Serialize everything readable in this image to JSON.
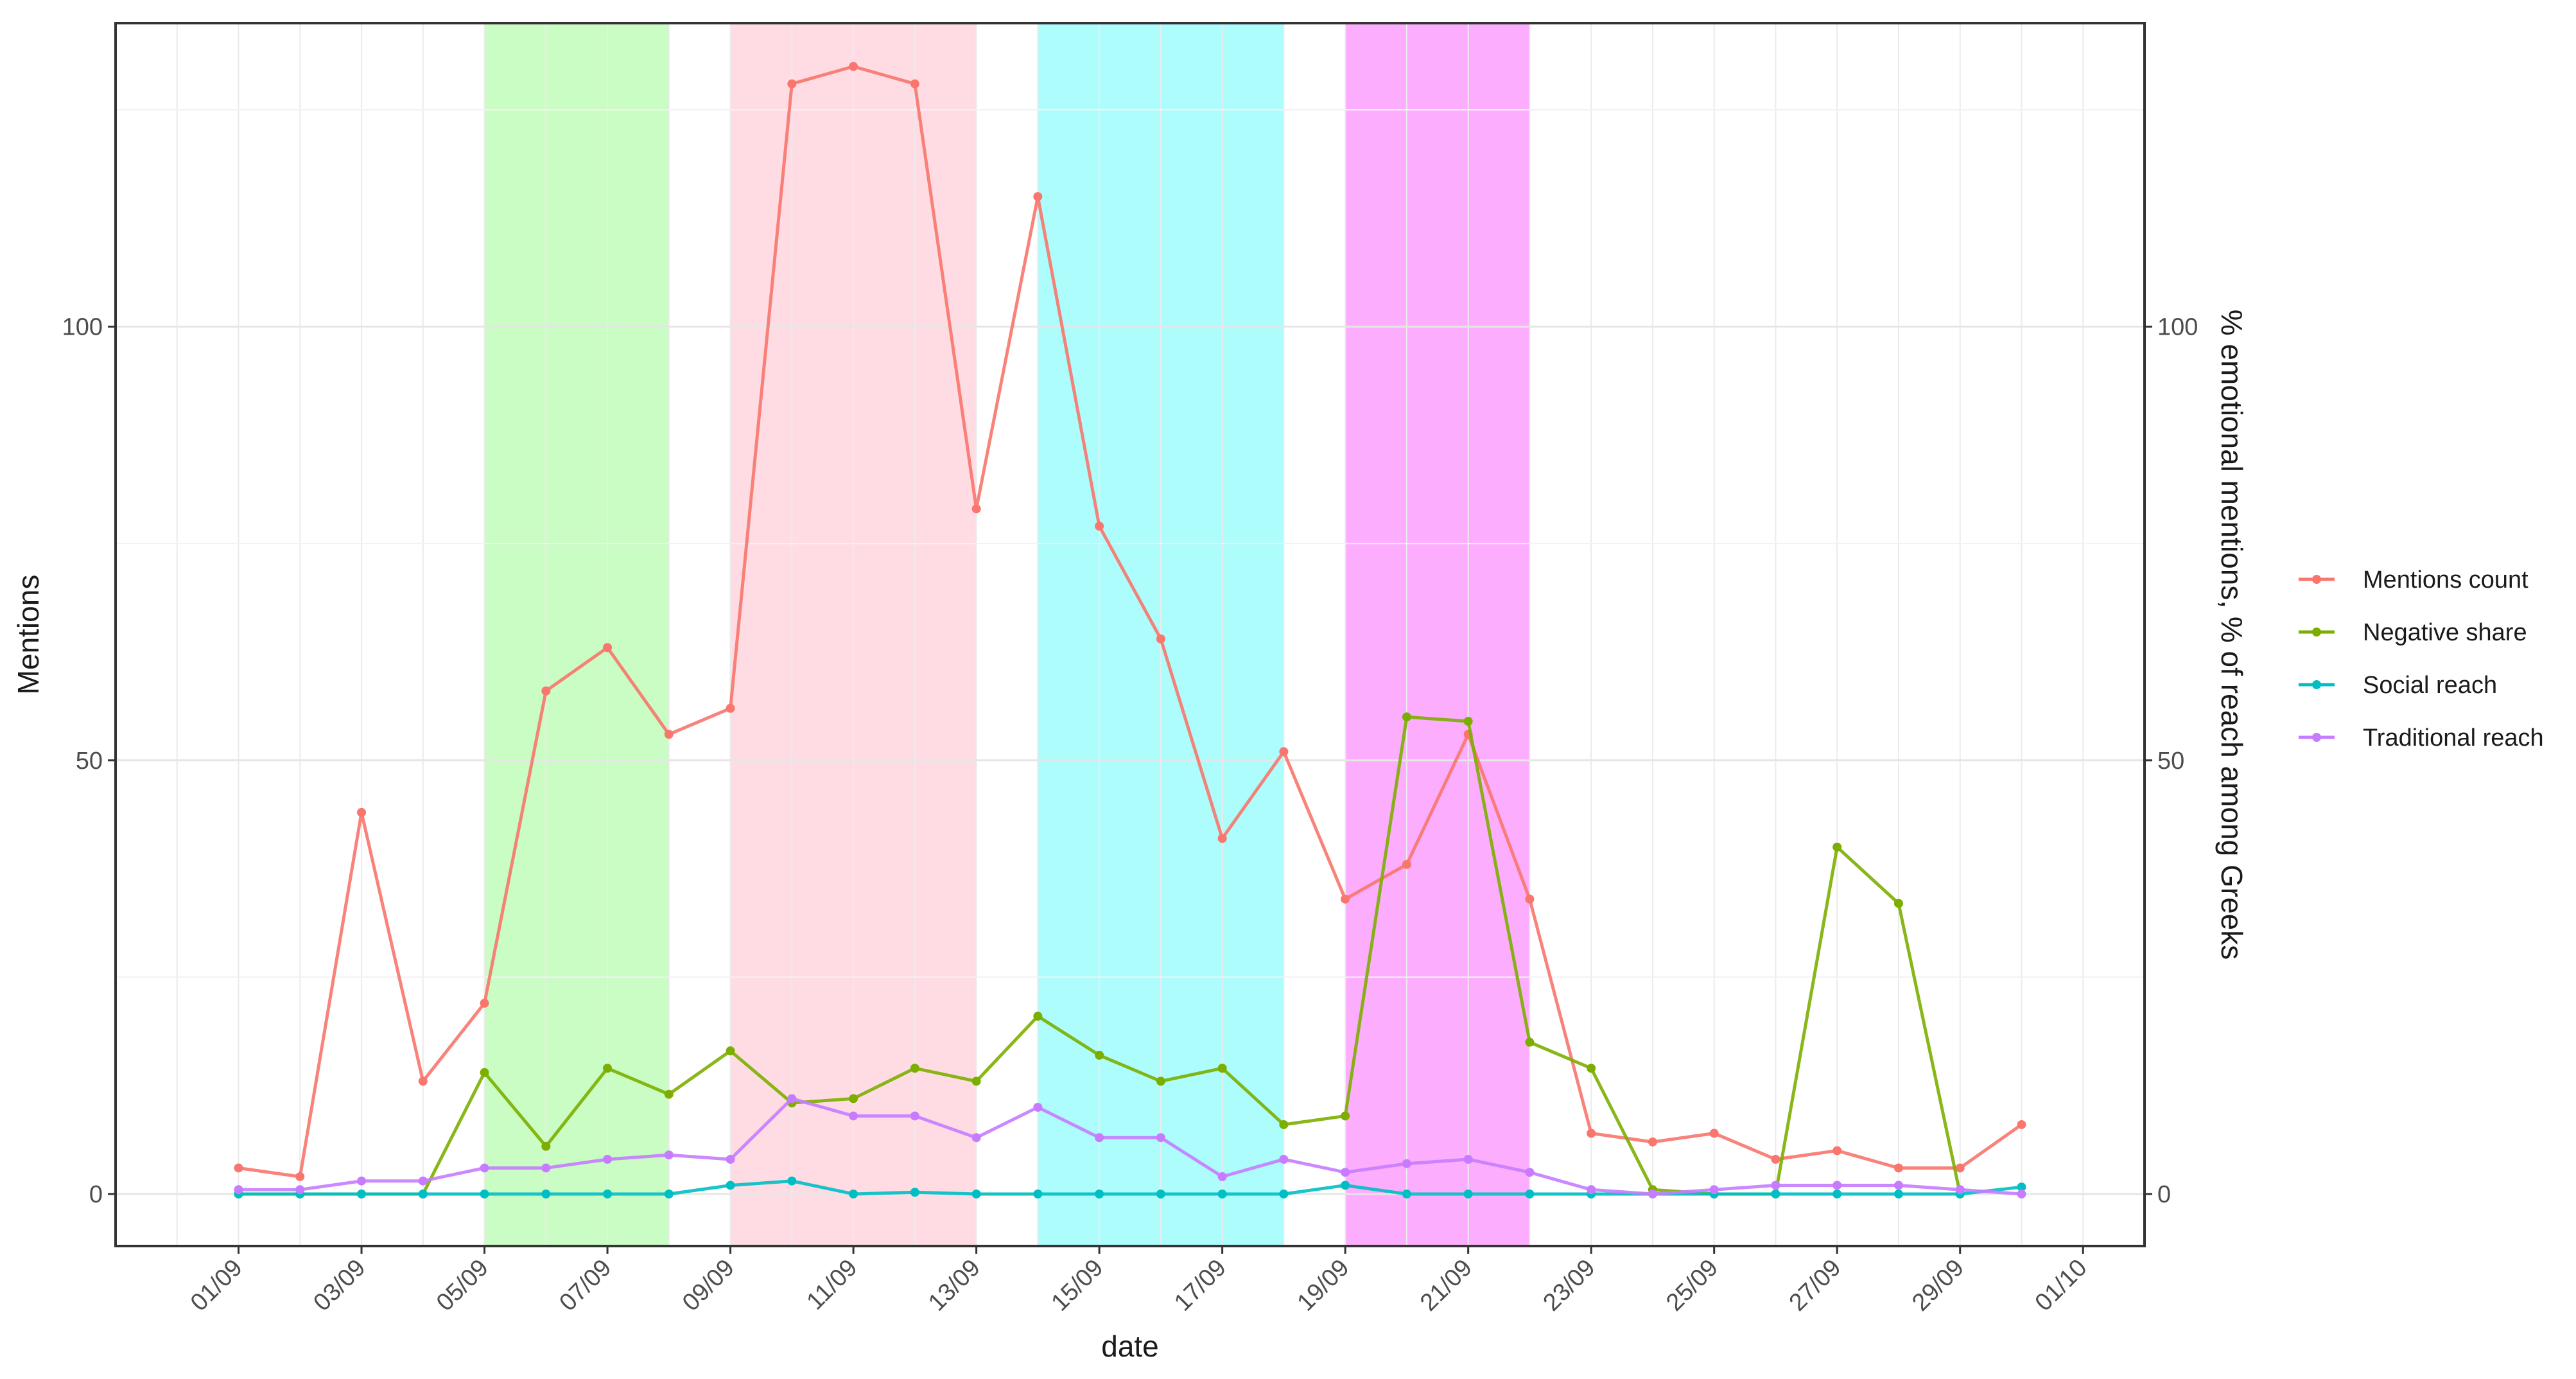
{
  "chart_data": {
    "type": "line",
    "xlabel": "date",
    "ylabel_left": "Mentions",
    "ylabel_right": "% emotional mentions, % of reach among Greeks",
    "x_start": "01/09",
    "xlim": [
      "2020-08-30",
      "2020-10-02"
    ],
    "ylim": [
      -6,
      135
    ],
    "y_ticks": [
      0,
      50,
      100
    ],
    "y_tick_labels": [
      "0",
      "50",
      "100"
    ],
    "x_tick_labels": [
      "01/09",
      "03/09",
      "05/09",
      "07/09",
      "09/09",
      "11/09",
      "13/09",
      "15/09",
      "17/09",
      "19/09",
      "21/09",
      "23/09",
      "25/09",
      "27/09",
      "29/09",
      "01/10"
    ],
    "x_tick_dates": [
      "2020-09-01",
      "2020-09-03",
      "2020-09-05",
      "2020-09-07",
      "2020-09-09",
      "2020-09-11",
      "2020-09-13",
      "2020-09-15",
      "2020-09-17",
      "2020-09-19",
      "2020-09-21",
      "2020-09-23",
      "2020-09-25",
      "2020-09-27",
      "2020-09-29",
      "2020-10-01"
    ],
    "dates": [
      "01/09",
      "02/09",
      "03/09",
      "04/09",
      "05/09",
      "06/09",
      "07/09",
      "08/09",
      "09/09",
      "10/09",
      "11/09",
      "12/09",
      "13/09",
      "14/09",
      "15/09",
      "16/09",
      "17/09",
      "18/09",
      "19/09",
      "20/09",
      "21/09",
      "22/09",
      "23/09",
      "24/09",
      "25/09",
      "26/09",
      "27/09",
      "28/09",
      "29/09",
      "30/09"
    ],
    "grid": true,
    "legend_position": "right",
    "shaded_periods": [
      {
        "start": "05/09",
        "end": "08/09",
        "color": "#c9fdc4"
      },
      {
        "start": "09/09",
        "end": "13/09",
        "color": "#ffdce3"
      },
      {
        "start": "14/09",
        "end": "18/09",
        "color": "#adfdfc"
      },
      {
        "start": "19/09",
        "end": "22/09",
        "color": "#fdadfe"
      }
    ],
    "series": [
      {
        "name": "Mentions count",
        "color": "#f8766d",
        "values": [
          3,
          2,
          44,
          13,
          22,
          58,
          63,
          53,
          56,
          128,
          130,
          128,
          79,
          115,
          77,
          64,
          41,
          51,
          34,
          38,
          53,
          34,
          7,
          6,
          7,
          4,
          5,
          3,
          3,
          8
        ]
      },
      {
        "name": "Negative share",
        "color": "#7cae00",
        "values": [
          0,
          0,
          0,
          0,
          14,
          5.5,
          14.5,
          11.5,
          16.5,
          10.5,
          11,
          14.5,
          13,
          20.5,
          16,
          13,
          14.5,
          8,
          9,
          55,
          54.5,
          17.5,
          14.5,
          0.5,
          0,
          0,
          40,
          33.5,
          0,
          null
        ]
      },
      {
        "name": "Social reach",
        "color": "#00bfc4",
        "values": [
          0,
          0,
          0,
          0,
          0,
          0,
          0,
          0,
          1,
          1.5,
          0,
          0.2,
          0,
          0,
          0,
          0,
          0,
          0,
          1,
          0,
          0,
          0,
          0,
          0,
          0,
          0,
          0,
          0,
          0,
          0.8
        ]
      },
      {
        "name": "Traditional reach",
        "color": "#c77cff",
        "values": [
          0.5,
          0.5,
          1.5,
          1.5,
          3,
          3,
          4,
          4.5,
          4,
          11,
          9,
          9,
          6.5,
          10,
          6.5,
          6.5,
          2,
          4,
          2.5,
          3.5,
          4,
          2.5,
          0.5,
          0,
          0.5,
          1,
          1,
          1,
          0.5,
          0
        ]
      }
    ]
  }
}
